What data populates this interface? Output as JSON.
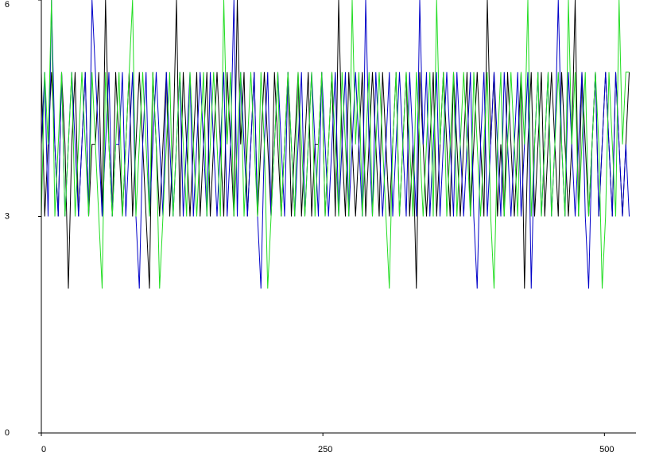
{
  "chart_data": {
    "type": "line",
    "x": [
      0,
      3,
      6,
      9,
      12,
      15,
      18,
      21,
      24,
      27,
      30,
      33,
      36,
      39,
      42,
      45,
      48,
      51,
      54,
      57,
      60,
      63,
      66,
      69,
      72,
      75,
      78,
      81,
      84,
      87,
      90,
      93,
      96,
      99,
      102,
      105,
      108,
      111,
      114,
      117,
      120,
      123,
      126,
      129,
      132,
      135,
      138,
      141,
      144,
      147,
      150,
      153,
      156,
      159,
      162,
      165,
      168,
      171,
      174,
      177,
      180,
      183,
      186,
      189,
      192,
      195,
      198,
      201,
      204,
      207,
      210,
      213,
      216,
      219,
      222,
      225,
      228,
      231,
      234,
      237,
      240,
      243,
      246,
      249,
      252,
      255,
      258,
      261,
      264,
      267,
      270,
      273,
      276,
      279,
      282,
      285,
      288,
      291,
      294,
      297,
      300,
      303,
      306,
      309,
      312,
      315,
      318,
      321,
      324,
      327,
      330,
      333,
      336,
      339,
      342,
      345,
      348,
      351,
      354,
      357,
      360,
      363,
      366,
      369,
      372,
      375,
      378,
      381,
      384,
      387,
      390,
      393,
      396,
      399,
      402,
      405,
      408,
      411,
      414,
      417,
      420,
      423,
      426,
      429,
      432,
      435,
      438,
      441,
      444,
      447,
      450,
      453,
      456,
      459,
      462,
      465,
      468,
      471,
      474,
      477,
      480,
      483,
      486,
      489,
      492,
      495,
      498,
      501,
      504,
      507,
      510,
      513,
      516,
      519,
      522
    ],
    "series": [
      {
        "color": "#000000",
        "values": [
          5,
          3,
          4,
          5,
          4,
          3,
          5,
          4,
          2,
          4,
          5,
          3,
          4,
          5,
          3,
          4,
          4,
          5,
          3,
          6,
          4,
          3,
          5,
          4,
          3,
          4,
          5,
          3,
          4,
          5,
          4,
          3,
          2,
          5,
          4,
          3,
          4,
          5,
          3,
          4,
          6,
          3,
          5,
          4,
          3,
          4,
          5,
          3,
          4,
          5,
          3,
          4,
          5,
          4,
          3,
          5,
          4,
          3,
          6,
          4,
          5,
          3,
          4,
          5,
          3,
          4,
          5,
          4,
          3,
          5,
          4,
          3,
          4,
          5,
          3,
          4,
          5,
          3,
          4,
          5,
          3,
          4,
          4,
          5,
          3,
          4,
          5,
          3,
          6,
          4,
          3,
          5,
          4,
          3,
          4,
          5,
          3,
          4,
          5,
          4,
          3,
          5,
          4,
          3,
          4,
          5,
          3,
          4,
          5,
          3,
          4,
          2,
          5,
          4,
          3,
          4,
          5,
          3,
          4,
          5,
          4,
          3,
          5,
          4,
          3,
          4,
          5,
          3,
          4,
          5,
          4,
          3,
          6,
          4,
          5,
          3,
          4,
          3,
          5,
          4,
          3,
          4,
          5,
          2,
          4,
          5,
          3,
          4,
          5,
          3,
          4,
          5,
          4,
          3,
          5,
          4,
          3,
          4,
          6,
          3,
          5,
          4,
          3,
          4,
          5,
          3,
          4,
          5,
          4,
          3,
          5,
          4,
          3,
          4,
          5
        ]
      },
      {
        "color": "#0000c8",
        "values": [
          4,
          5,
          3,
          6,
          4,
          3,
          5,
          3,
          4,
          5,
          4,
          3,
          4,
          5,
          3,
          6,
          5,
          4,
          3,
          4,
          5,
          3,
          4,
          4,
          5,
          3,
          4,
          5,
          3,
          2,
          4,
          5,
          3,
          4,
          5,
          4,
          3,
          5,
          4,
          3,
          4,
          5,
          3,
          4,
          5,
          3,
          4,
          5,
          4,
          3,
          5,
          4,
          3,
          4,
          5,
          3,
          4,
          6,
          3,
          5,
          4,
          3,
          4,
          5,
          3,
          2,
          4,
          5,
          3,
          4,
          5,
          4,
          3,
          5,
          4,
          3,
          4,
          5,
          3,
          4,
          5,
          4,
          3,
          5,
          4,
          3,
          4,
          5,
          3,
          4,
          5,
          3,
          4,
          5,
          4,
          3,
          6,
          4,
          3,
          5,
          4,
          3,
          4,
          5,
          3,
          4,
          5,
          4,
          3,
          5,
          4,
          3,
          6,
          4,
          5,
          3,
          4,
          5,
          3,
          4,
          5,
          4,
          3,
          5,
          4,
          3,
          4,
          5,
          3,
          2,
          4,
          5,
          3,
          4,
          5,
          4,
          3,
          5,
          4,
          3,
          4,
          5,
          3,
          4,
          5,
          2,
          4,
          5,
          3,
          4,
          5,
          3,
          4,
          6,
          4,
          3,
          5,
          4,
          3,
          4,
          5,
          3,
          2,
          4,
          5,
          3,
          4,
          5,
          4,
          3,
          5,
          4,
          3,
          4,
          3
        ]
      },
      {
        "color": "#22dd22",
        "values": [
          3,
          5,
          4,
          6,
          3,
          4,
          5,
          3,
          4,
          5,
          3,
          4,
          5,
          4,
          3,
          5,
          4,
          3,
          2,
          5,
          4,
          3,
          4,
          5,
          3,
          4,
          5,
          6,
          3,
          4,
          5,
          4,
          3,
          5,
          4,
          2,
          3,
          4,
          5,
          3,
          4,
          5,
          4,
          3,
          5,
          4,
          3,
          4,
          5,
          3,
          4,
          5,
          4,
          3,
          6,
          4,
          5,
          3,
          4,
          5,
          3,
          4,
          5,
          4,
          3,
          5,
          4,
          2,
          3,
          4,
          5,
          3,
          4,
          5,
          4,
          3,
          5,
          4,
          3,
          4,
          5,
          3,
          4,
          5,
          3,
          4,
          5,
          4,
          3,
          5,
          4,
          3,
          6,
          4,
          5,
          3,
          4,
          5,
          3,
          4,
          5,
          4,
          3,
          2,
          4,
          5,
          3,
          4,
          5,
          4,
          3,
          5,
          4,
          3,
          4,
          5,
          3,
          6,
          4,
          5,
          3,
          4,
          5,
          3,
          4,
          5,
          4,
          3,
          5,
          4,
          3,
          4,
          5,
          3,
          2,
          4,
          5,
          3,
          4,
          5,
          4,
          3,
          5,
          4,
          6,
          3,
          4,
          5,
          3,
          4,
          5,
          3,
          4,
          5,
          4,
          3,
          6,
          4,
          5,
          3,
          4,
          5,
          3,
          4,
          5,
          4,
          2,
          3,
          5,
          4,
          3,
          6,
          4,
          5,
          5
        ]
      }
    ],
    "xlim": [
      0,
      528
    ],
    "xticks": [
      0,
      250,
      500
    ],
    "ylim": [
      0,
      6
    ],
    "yticks": [
      0,
      3,
      6
    ]
  }
}
